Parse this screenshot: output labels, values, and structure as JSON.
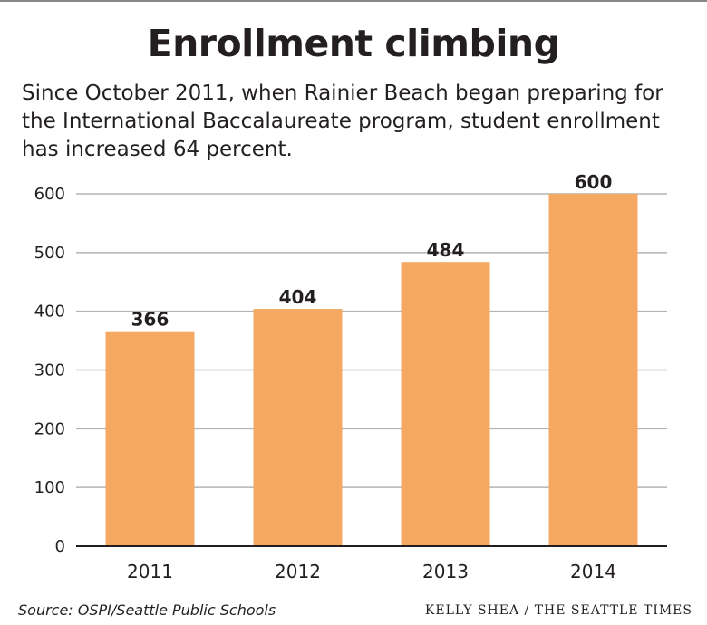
{
  "title": "Enrollment climbing",
  "subtitle_lines": [
    "Since October 2011, when Rainier Beach began preparing for",
    "the International Baccalaureate program, student enrollment",
    "has increased 64 percent."
  ],
  "source": "Source: OSPI/Seattle Public Schools",
  "credit": "KELLY SHEA / THE SEATTLE TIMES",
  "chart_data": {
    "type": "bar",
    "title": "Enrollment climbing",
    "categories": [
      "2011",
      "2012",
      "2013",
      "2014"
    ],
    "values": [
      366,
      404,
      484,
      600
    ],
    "data_labels": [
      "366",
      "404",
      "484",
      "600"
    ],
    "xlabel": "",
    "ylabel": "",
    "ylim": [
      0,
      600
    ],
    "yticks": [
      0,
      100,
      200,
      300,
      400,
      500,
      600
    ],
    "grid": true,
    "legend": "none",
    "colors": {
      "bar": "#f5a862",
      "grid": "#b3b3b3",
      "axis": "#231f20",
      "text": "#231f20"
    }
  }
}
